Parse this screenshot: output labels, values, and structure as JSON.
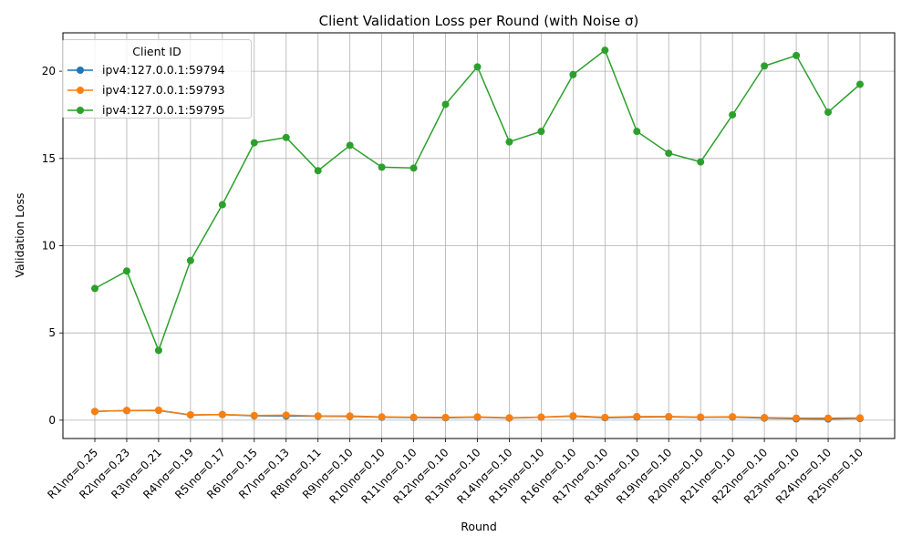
{
  "chart_data": {
    "type": "line",
    "title": "Client Validation Loss per Round (with Noise σ)",
    "xlabel": "Round",
    "ylabel": "Validation Loss",
    "ylim": [
      -1.05,
      22.2
    ],
    "yticks": [
      0,
      5,
      10,
      15,
      20
    ],
    "grid": true,
    "legend": {
      "title": "Client ID",
      "position": "upper-left"
    },
    "categories": [
      "R1\\nσ=0.25",
      "R2\\nσ=0.23",
      "R3\\nσ=0.21",
      "R4\\nσ=0.19",
      "R5\\nσ=0.17",
      "R6\\nσ=0.15",
      "R7\\nσ=0.13",
      "R8\\nσ=0.11",
      "R9\\nσ=0.10",
      "R10\\nσ=0.10",
      "R11\\nσ=0.10",
      "R12\\nσ=0.10",
      "R13\\nσ=0.10",
      "R14\\nσ=0.10",
      "R15\\nσ=0.10",
      "R16\\nσ=0.10",
      "R17\\nσ=0.10",
      "R18\\nσ=0.10",
      "R19\\nσ=0.10",
      "R20\\nσ=0.10",
      "R21\\nσ=0.10",
      "R22\\nσ=0.10",
      "R23\\nσ=0.10",
      "R24\\nσ=0.10",
      "R25\\nσ=0.10"
    ],
    "series": [
      {
        "name": "ipv4:127.0.0.1:59794",
        "color": "#1f77b4",
        "values": [
          0.5,
          0.55,
          0.56,
          0.3,
          0.32,
          0.25,
          0.24,
          0.23,
          0.22,
          0.17,
          0.15,
          0.14,
          0.17,
          0.12,
          0.17,
          0.23,
          0.14,
          0.18,
          0.19,
          0.16,
          0.18,
          0.12,
          0.08,
          0.07,
          0.1
        ]
      },
      {
        "name": "ipv4:127.0.0.1:59793",
        "color": "#ff7f0e",
        "values": [
          0.5,
          0.56,
          0.57,
          0.31,
          0.33,
          0.27,
          0.29,
          0.24,
          0.24,
          0.19,
          0.17,
          0.16,
          0.19,
          0.14,
          0.18,
          0.25,
          0.16,
          0.21,
          0.21,
          0.18,
          0.2,
          0.15,
          0.12,
          0.12,
          0.13
        ]
      },
      {
        "name": "ipv4:127.0.0.1:59795",
        "color": "#2ca02c",
        "values": [
          7.55,
          8.55,
          4.0,
          9.15,
          12.35,
          15.9,
          16.2,
          14.3,
          15.75,
          14.5,
          14.45,
          18.1,
          20.25,
          15.95,
          16.55,
          19.8,
          21.2,
          16.55,
          15.3,
          14.8,
          17.5,
          20.3,
          20.9,
          17.65,
          19.25
        ]
      }
    ]
  }
}
